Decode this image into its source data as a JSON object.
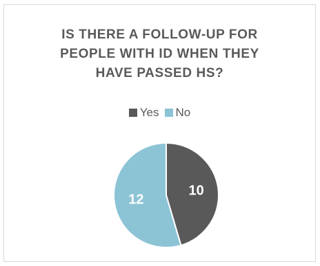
{
  "chart_data": {
    "type": "pie",
    "title_lines": [
      "IS THERE A FOLLOW-UP FOR",
      "PEOPLE WITH ID WHEN THEY",
      "HAVE PASSED HS?"
    ],
    "categories": [
      "Yes",
      "No"
    ],
    "values": [
      10,
      12
    ],
    "colors": [
      "#595959",
      "#8cc4d6"
    ],
    "data_labels": [
      "10",
      "12"
    ],
    "legend": {
      "position": "top",
      "entries": [
        "Yes",
        "No"
      ]
    }
  }
}
